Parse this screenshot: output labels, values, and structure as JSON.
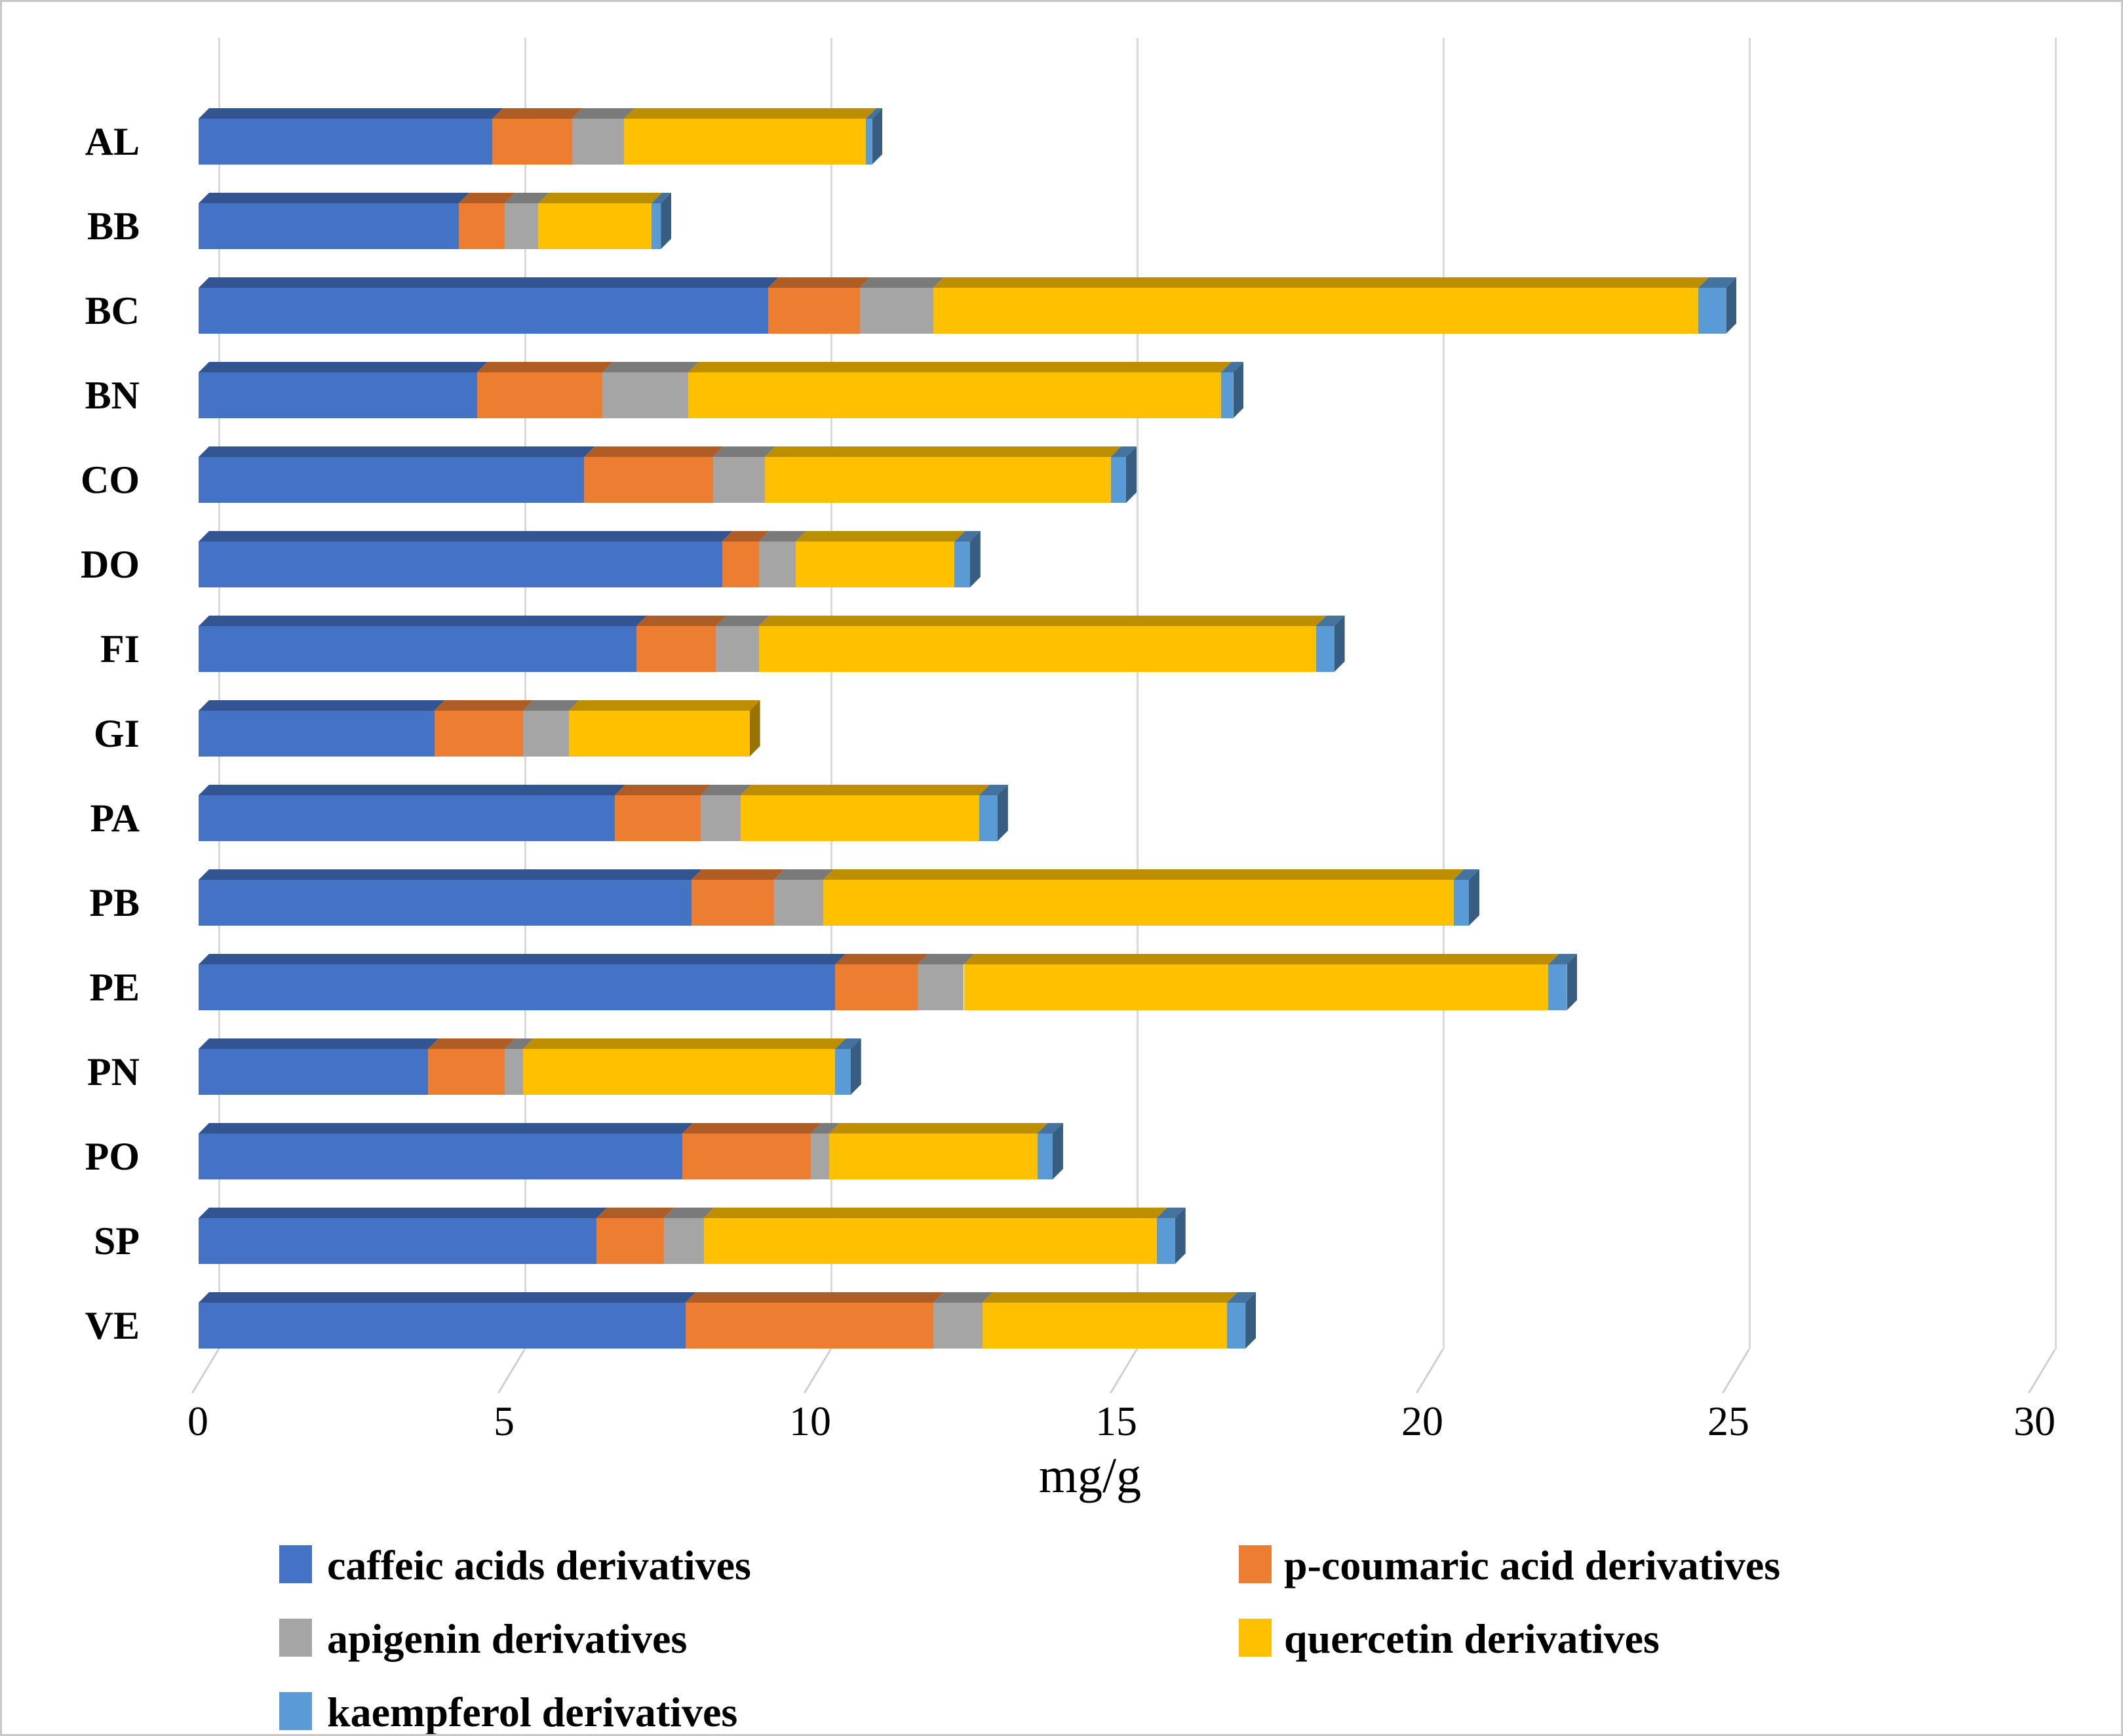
{
  "chart_data": {
    "type": "bar",
    "orientation": "horizontal",
    "stacked": true,
    "style": "3d",
    "title": "",
    "xlabel": "mg/g",
    "xlim": [
      0,
      30
    ],
    "xticks": [
      0,
      5,
      10,
      15,
      20,
      25,
      30
    ],
    "grid": true,
    "legend_position": "bottom",
    "categories": [
      "AL",
      "BB",
      "BC",
      "BN",
      "CO",
      "DO",
      "FI",
      "GI",
      "PA",
      "PB",
      "PE",
      "PN",
      "PO",
      "SP",
      "VE"
    ],
    "series": [
      {
        "name": "caffeic acids derivatives",
        "color": "#4472C4",
        "values": [
          4.8,
          4.25,
          9.3,
          4.55,
          6.3,
          8.55,
          7.15,
          3.85,
          6.8,
          8.05,
          10.4,
          3.75,
          7.9,
          6.5,
          7.95
        ]
      },
      {
        "name": "p-coumaric acid derivatives",
        "color": "#ED7D31",
        "values": [
          1.3,
          0.75,
          1.5,
          2.05,
          2.1,
          0.6,
          1.3,
          1.45,
          1.4,
          1.35,
          1.35,
          1.25,
          2.1,
          1.1,
          4.05
        ]
      },
      {
        "name": "apigenin derivatives",
        "color": "#A5A5A5",
        "values": [
          0.85,
          0.55,
          1.2,
          1.4,
          0.85,
          0.6,
          0.7,
          0.75,
          0.65,
          0.8,
          0.75,
          0.3,
          0.3,
          0.65,
          0.8
        ]
      },
      {
        "name": "quercetin derivatives",
        "color": "#FFC000",
        "values": [
          3.95,
          1.85,
          12.5,
          8.7,
          5.65,
          2.6,
          9.1,
          2.95,
          3.9,
          10.3,
          9.55,
          5.1,
          3.4,
          7.4,
          4.0
        ]
      },
      {
        "name": "kaempferol derivatives",
        "color": "#5B9BD5",
        "values": [
          0.1,
          0.15,
          0.45,
          0.2,
          0.25,
          0.25,
          0.3,
          0.0,
          0.3,
          0.25,
          0.3,
          0.25,
          0.25,
          0.3,
          0.3
        ]
      }
    ],
    "totals": [
      11.0,
      7.55,
      24.95,
      16.9,
      15.15,
      12.6,
      18.55,
      9.0,
      13.05,
      20.75,
      22.35,
      10.65,
      13.95,
      15.95,
      17.1
    ]
  }
}
